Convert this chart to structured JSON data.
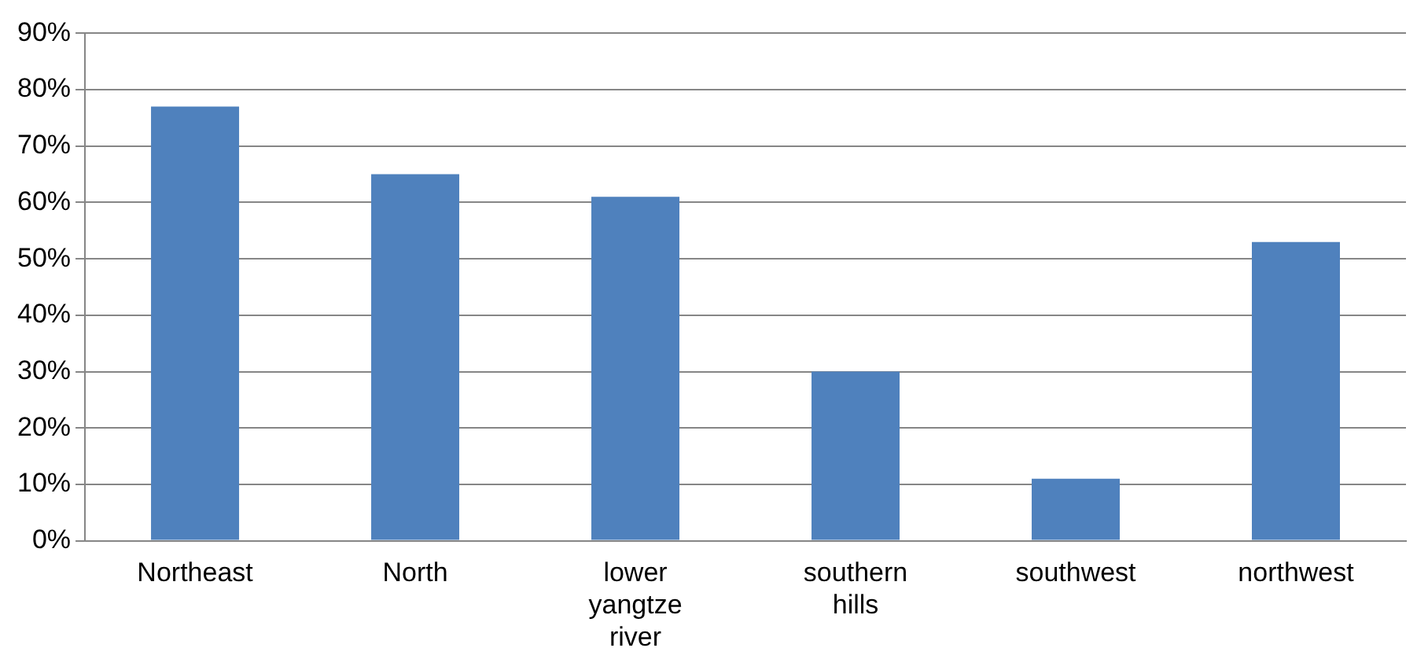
{
  "chart_data": {
    "type": "bar",
    "categories": [
      "Northeast",
      "North",
      "lower yangtze river",
      "southern hills",
      "southwest",
      "northwest"
    ],
    "values": [
      77,
      65,
      61,
      30,
      11,
      53
    ],
    "color": "#4f81bd",
    "ylim": [
      0,
      90
    ],
    "yticks": [
      {
        "value": 0,
        "label": "0%"
      },
      {
        "value": 10,
        "label": "10%"
      },
      {
        "value": 20,
        "label": "20%"
      },
      {
        "value": 30,
        "label": "30%"
      },
      {
        "value": 40,
        "label": "40%"
      },
      {
        "value": 50,
        "label": "50%"
      },
      {
        "value": 60,
        "label": "60%"
      },
      {
        "value": 70,
        "label": "70%"
      },
      {
        "value": 80,
        "label": "80%"
      },
      {
        "value": 90,
        "label": "90%"
      }
    ],
    "grid": "y",
    "legend": false
  }
}
